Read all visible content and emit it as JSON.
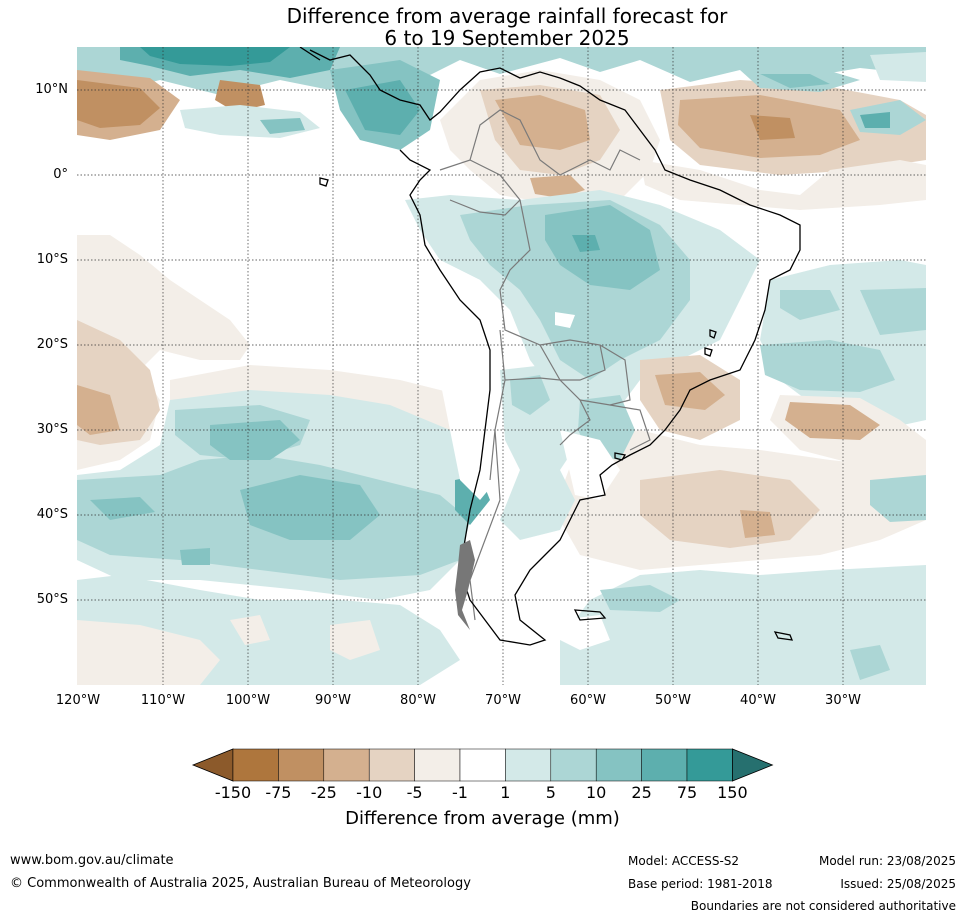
{
  "title": {
    "line1": "Difference from average rainfall forecast for",
    "line2": "6 to 19 September 2025"
  },
  "map": {
    "lat_labels": [
      "10°N",
      "0°",
      "10°S",
      "20°S",
      "30°S",
      "40°S",
      "50°S"
    ],
    "lon_labels": [
      "120°W",
      "110°W",
      "100°W",
      "90°W",
      "80°W",
      "70°W",
      "60°W",
      "50°W",
      "40°W",
      "30°W"
    ]
  },
  "colorbar": {
    "title": "Difference from average (mm)",
    "ticks": [
      "-150",
      "-75",
      "-25",
      "-10",
      "-5",
      "-1",
      "1",
      "5",
      "10",
      "25",
      "75",
      "150"
    ],
    "colors": [
      "#8c5a2b",
      "#ae763d",
      "#c09062",
      "#d4b08f",
      "#e5d3c2",
      "#f3eee8",
      "#ffffff",
      "#d3e9e8",
      "#acd6d5",
      "#85c3c2",
      "#5dafae",
      "#349a98",
      "#26706f"
    ]
  },
  "footer": {
    "website": "www.bom.gov.au/climate",
    "copyright": "© Commonwealth of Australia 2025, Australian Bureau of Meteorology",
    "model": "Model: ACCESS-S2",
    "base_period": "Base period: 1981-2018",
    "model_run": "Model run: 23/08/2025",
    "issued": "Issued: 25/08/2025",
    "disclaimer": "Boundaries are not considered authoritative"
  }
}
